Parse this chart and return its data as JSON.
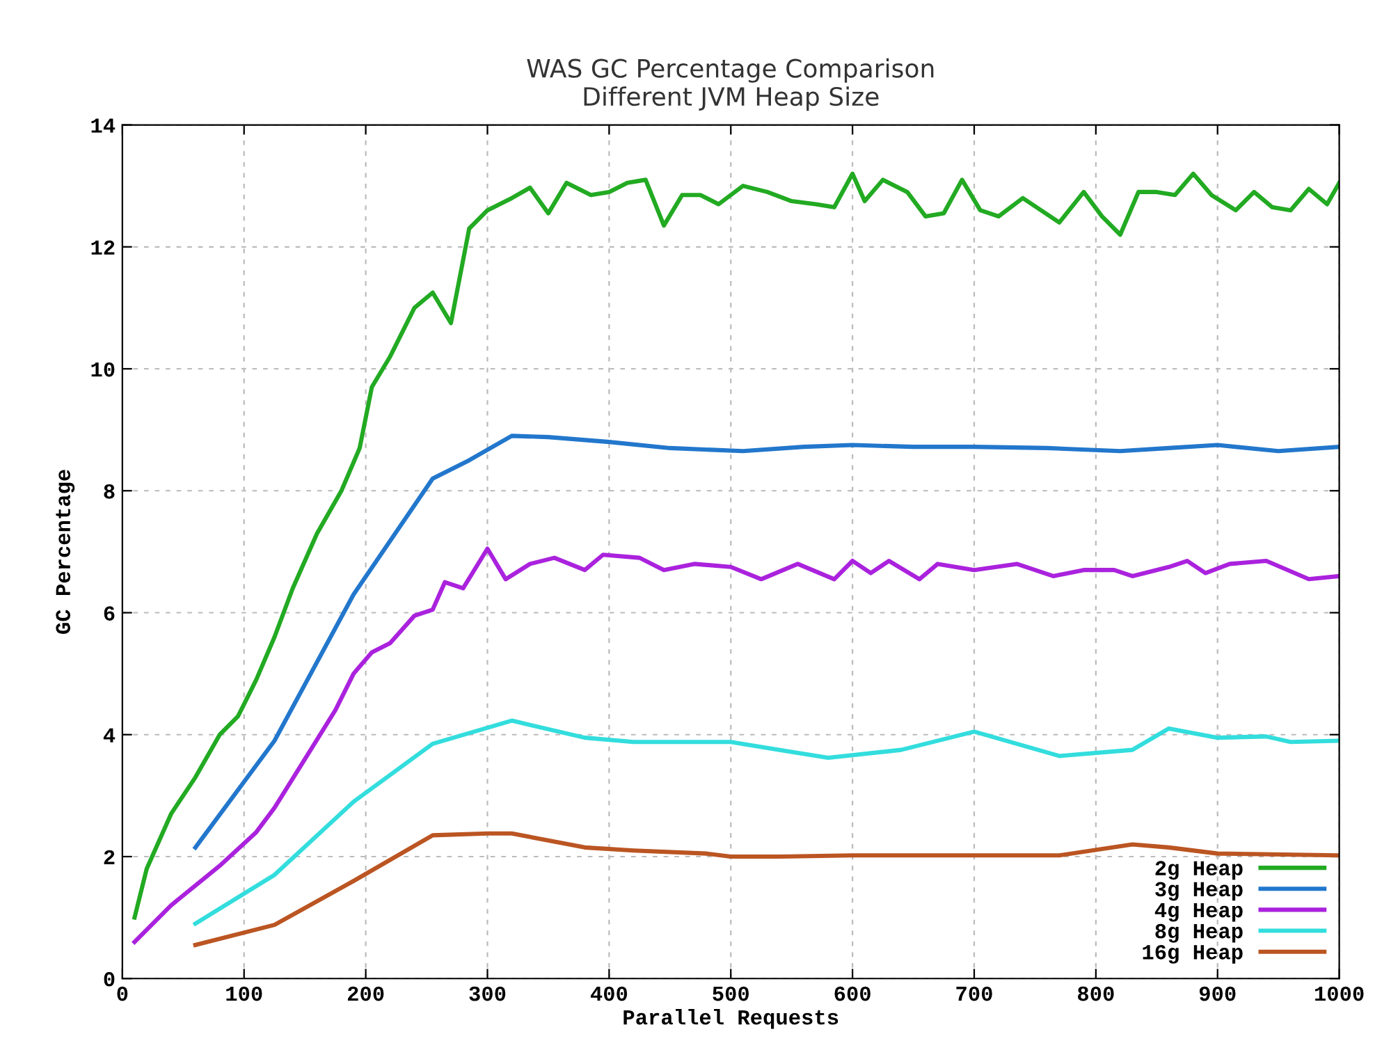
{
  "chart_data": {
    "type": "line",
    "title": "WAS GC Percentage Comparison\nDifferent JVM Heap Size",
    "xlabel": "Parallel Requests",
    "ylabel": "GC Percentage",
    "xlim": [
      0,
      1000
    ],
    "xticks": [
      0,
      100,
      200,
      300,
      400,
      500,
      600,
      700,
      800,
      900,
      1000
    ],
    "ylim": [
      0,
      14
    ],
    "yticks": [
      0,
      2,
      4,
      6,
      8,
      10,
      12,
      14
    ],
    "grid": true,
    "legend": "bottom right",
    "marker": "none",
    "line_style": "solid",
    "series": [
      {
        "name": "2g Heap",
        "color": "#22aa22",
        "x": [
          10,
          20,
          40,
          60,
          80,
          95,
          110,
          125,
          140,
          160,
          180,
          195,
          205,
          220,
          240,
          255,
          270,
          285,
          300,
          320,
          335,
          350,
          365,
          385,
          400,
          415,
          430,
          445,
          460,
          475,
          490,
          510,
          530,
          550,
          570,
          585,
          600,
          610,
          625,
          645,
          660,
          675,
          690,
          705,
          720,
          740,
          755,
          770,
          790,
          805,
          820,
          835,
          850,
          865,
          880,
          895,
          915,
          930,
          945,
          960,
          975,
          990,
          1000
        ],
        "values": [
          1.0,
          1.8,
          2.7,
          3.3,
          4.0,
          4.3,
          4.9,
          5.6,
          6.4,
          7.3,
          8.0,
          8.7,
          9.7,
          10.2,
          11.0,
          11.25,
          10.75,
          12.3,
          12.6,
          12.8,
          12.97,
          12.55,
          13.05,
          12.85,
          12.9,
          13.05,
          13.1,
          12.35,
          12.85,
          12.85,
          12.7,
          13.0,
          12.9,
          12.75,
          12.7,
          12.65,
          13.2,
          12.75,
          13.1,
          12.9,
          12.5,
          12.55,
          13.1,
          12.6,
          12.5,
          12.8,
          12.6,
          12.4,
          12.9,
          12.5,
          12.2,
          12.9,
          12.9,
          12.85,
          13.2,
          12.85,
          12.6,
          12.9,
          12.65,
          12.6,
          12.95,
          12.7,
          13.05
        ]
      },
      {
        "name": "3g Heap",
        "color": "#2277cc",
        "x": [
          60,
          125,
          190,
          255,
          285,
          320,
          350,
          400,
          450,
          510,
          560,
          600,
          650,
          700,
          760,
          820,
          860,
          900,
          950,
          1000
        ],
        "values": [
          2.15,
          3.9,
          6.3,
          8.2,
          8.5,
          8.9,
          8.88,
          8.8,
          8.7,
          8.65,
          8.72,
          8.75,
          8.72,
          8.72,
          8.7,
          8.65,
          8.7,
          8.75,
          8.65,
          8.72
        ]
      },
      {
        "name": "4g Heap",
        "color": "#aa22dd",
        "x": [
          10,
          40,
          80,
          110,
          125,
          150,
          175,
          190,
          205,
          220,
          240,
          255,
          265,
          280,
          300,
          315,
          335,
          355,
          380,
          395,
          425,
          445,
          470,
          500,
          525,
          555,
          585,
          600,
          615,
          630,
          655,
          670,
          700,
          735,
          765,
          790,
          815,
          830,
          860,
          875,
          890,
          910,
          940,
          975,
          1000
        ],
        "values": [
          0.6,
          1.2,
          1.85,
          2.4,
          2.8,
          3.6,
          4.4,
          5.0,
          5.35,
          5.5,
          5.95,
          6.05,
          6.5,
          6.4,
          7.05,
          6.55,
          6.8,
          6.9,
          6.7,
          6.95,
          6.9,
          6.7,
          6.8,
          6.75,
          6.55,
          6.8,
          6.55,
          6.85,
          6.65,
          6.85,
          6.55,
          6.8,
          6.7,
          6.8,
          6.6,
          6.7,
          6.7,
          6.6,
          6.75,
          6.85,
          6.65,
          6.8,
          6.85,
          6.55,
          6.6
        ]
      },
      {
        "name": "8g Heap",
        "color": "#33dddd",
        "x": [
          60,
          125,
          190,
          255,
          320,
          380,
          420,
          500,
          540,
          580,
          640,
          700,
          770,
          830,
          860,
          900,
          940,
          960,
          1000
        ],
        "values": [
          0.9,
          1.7,
          2.9,
          3.85,
          4.23,
          3.95,
          3.88,
          3.88,
          3.75,
          3.62,
          3.75,
          4.05,
          3.65,
          3.75,
          4.1,
          3.95,
          3.97,
          3.88,
          3.9
        ]
      },
      {
        "name": "16g Heap",
        "color": "#bb5522",
        "x": [
          60,
          125,
          190,
          255,
          300,
          320,
          380,
          420,
          480,
          500,
          540,
          600,
          700,
          770,
          830,
          860,
          900,
          1000
        ],
        "values": [
          0.55,
          0.88,
          1.6,
          2.35,
          2.38,
          2.38,
          2.15,
          2.1,
          2.05,
          2.0,
          2.0,
          2.02,
          2.02,
          2.02,
          2.2,
          2.15,
          2.05,
          2.02
        ]
      }
    ]
  }
}
